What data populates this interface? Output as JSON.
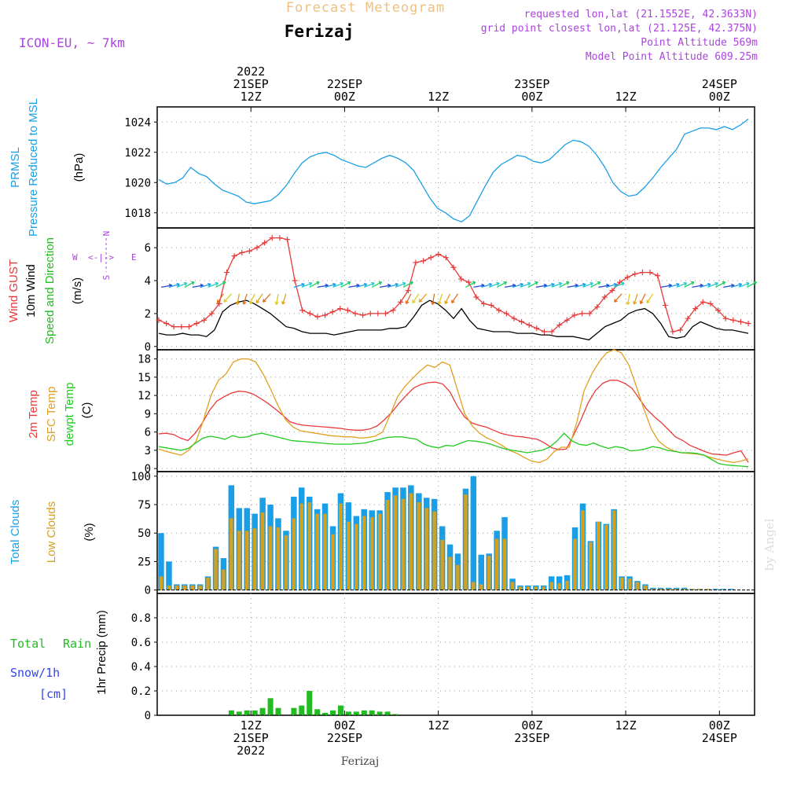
{
  "header": {
    "title_top": "Forecast Meteogram",
    "station": "Ferizaj",
    "model": "ICON-EU, ~ 7km",
    "info_1": "requested lon,lat (21.1552E, 42.3633N)",
    "info_2": "grid point closest lon,lat (21.125E, 42.375N)",
    "info_3": "Point Altitude 569m",
    "info_4": "Model Point Altitude 609.25m",
    "footer_station": "Ferizaj",
    "watermark": "by Angel"
  },
  "colors": {
    "pressure": "#1a9fe6",
    "gust": "#e83a3a",
    "wind": "#000000",
    "wind_dir_label": "#22bb22",
    "t2m": "#e83a3a",
    "sfc": "#e0a020",
    "dewpt": "#22cc22",
    "total_clouds": "#1a9fe6",
    "low_clouds": "#d4a020",
    "rain": "#22bb22",
    "snow": "#3344ee",
    "compass": "#aa44dd",
    "header_purple": "#aa44dd",
    "title_orange": "#f0c080"
  },
  "top_axis": {
    "labels": [
      {
        "hour": 12,
        "lines": [
          "2022",
          "21SEP",
          "12Z"
        ]
      },
      {
        "hour": 24,
        "lines": [
          "22SEP",
          "00Z"
        ]
      },
      {
        "hour": 36,
        "lines": [
          "12Z"
        ]
      },
      {
        "hour": 48,
        "lines": [
          "23SEP",
          "00Z"
        ]
      },
      {
        "hour": 60,
        "lines": [
          "12Z"
        ]
      },
      {
        "hour": 72,
        "lines": [
          "24SEP",
          "00Z"
        ]
      }
    ]
  },
  "bottom_axis": {
    "labels": [
      {
        "hour": 12,
        "lines": [
          "12Z",
          "21SEP",
          "2022"
        ]
      },
      {
        "hour": 24,
        "lines": [
          "00Z",
          "22SEP"
        ]
      },
      {
        "hour": 36,
        "lines": [
          "12Z"
        ]
      },
      {
        "hour": 48,
        "lines": [
          "00Z",
          "23SEP"
        ]
      },
      {
        "hour": 60,
        "lines": [
          "12Z"
        ]
      },
      {
        "hour": 72,
        "lines": [
          "00Z",
          "24SEP"
        ]
      }
    ]
  },
  "panels": {
    "pressure": {
      "label_1": "PRMSL",
      "label_2": "Pressure Reduced to MSL",
      "unit": "(hPa)"
    },
    "wind": {
      "label_gust": "Wind GUST",
      "label_wind": "10m Wind",
      "label_dir": "Speed and Direction",
      "unit": "(m/s)",
      "compass_n": "N",
      "compass_s": "S",
      "compass_w": "W",
      "compass_e": "E",
      "compass_arrows": "<-|->"
    },
    "temp": {
      "label_t2m": "2m Temp",
      "label_sfc": "SFC Temp",
      "label_dew": "dewpt Temp",
      "unit": "(C)"
    },
    "clouds": {
      "label_total": "Total Clouds",
      "label_low": "Low Clouds",
      "unit": "(%)"
    },
    "precip": {
      "label_rain_1": "Total",
      "label_rain_2": "Rain",
      "label_snow": "Snow/1h",
      "label_cm": "[cm]",
      "unit": "1hr Precip (mm)"
    }
  },
  "chart_data": [
    {
      "type": "line",
      "name": "pressure",
      "x_range_hours": [
        0,
        76.5
      ],
      "ylim": [
        1017,
        1025
      ],
      "yticks": [
        1018,
        1020,
        1022,
        1024
      ],
      "series": [
        {
          "name": "PRMSL",
          "values": [
            1020.2,
            1019.9,
            1020.0,
            1020.3,
            1021.0,
            1020.6,
            1020.4,
            1019.9,
            1019.5,
            1019.3,
            1019.1,
            1018.7,
            1018.6,
            1018.7,
            1018.8,
            1019.2,
            1019.8,
            1020.6,
            1021.3,
            1021.7,
            1021.9,
            1022.0,
            1021.8,
            1021.5,
            1021.3,
            1021.1,
            1021.0,
            1021.3,
            1021.6,
            1021.8,
            1021.6,
            1021.3,
            1020.8,
            1019.9,
            1019.0,
            1018.3,
            1018.0,
            1017.6,
            1017.4,
            1017.8,
            1018.8,
            1019.8,
            1020.7,
            1021.2,
            1021.5,
            1021.8,
            1021.7,
            1021.4,
            1021.3,
            1021.5,
            1022.0,
            1022.5,
            1022.8,
            1022.7,
            1022.4,
            1021.8,
            1021.0,
            1020.0,
            1019.4,
            1019.1,
            1019.2,
            1019.7,
            1020.3,
            1021.0,
            1021.6,
            1022.2,
            1023.2,
            1023.4,
            1023.6,
            1023.6,
            1023.5,
            1023.7,
            1023.5,
            1023.8,
            1024.2
          ]
        }
      ],
      "grid": true
    },
    {
      "type": "line",
      "name": "wind",
      "x_range_hours": [
        0,
        76.5
      ],
      "ylim": [
        -0.2,
        7.2
      ],
      "yticks": [
        0,
        2,
        4,
        6
      ],
      "series": [
        {
          "name": "Wind GUST",
          "values": [
            1.6,
            1.4,
            1.2,
            1.2,
            1.2,
            1.4,
            1.6,
            2.0,
            2.6,
            4.5,
            5.5,
            5.7,
            5.8,
            6.0,
            6.3,
            6.6,
            6.6,
            6.5,
            4.0,
            2.2,
            2.0,
            1.8,
            1.9,
            2.1,
            2.3,
            2.2,
            2.0,
            1.9,
            2.0,
            2.0,
            2.0,
            2.2,
            2.7,
            3.4,
            5.1,
            5.2,
            5.4,
            5.6,
            5.4,
            4.8,
            4.1,
            3.9,
            3.0,
            2.6,
            2.5,
            2.2,
            2.0,
            1.7,
            1.5,
            1.3,
            1.1,
            0.9,
            0.9,
            1.3,
            1.6,
            1.9,
            2.0,
            2.0,
            2.4,
            3.0,
            3.4,
            3.9,
            4.2,
            4.4,
            4.5,
            4.5,
            4.3,
            2.5,
            0.9,
            1.0,
            1.7,
            2.3,
            2.7,
            2.6,
            2.2,
            1.7,
            1.6,
            1.5,
            1.4
          ]
        },
        {
          "name": "10m Wind",
          "values": [
            0.8,
            0.7,
            0.7,
            0.8,
            0.7,
            0.7,
            0.6,
            1.0,
            2.1,
            2.5,
            2.7,
            2.8,
            2.6,
            2.3,
            2.0,
            1.6,
            1.2,
            1.1,
            0.9,
            0.8,
            0.8,
            0.8,
            0.7,
            0.8,
            0.9,
            1.0,
            1.0,
            1.0,
            1.0,
            1.1,
            1.1,
            1.2,
            1.8,
            2.5,
            2.8,
            2.6,
            2.2,
            1.7,
            2.3,
            1.6,
            1.1,
            1.0,
            0.9,
            0.9,
            0.9,
            0.8,
            0.8,
            0.8,
            0.7,
            0.7,
            0.6,
            0.6,
            0.6,
            0.5,
            0.4,
            0.8,
            1.2,
            1.4,
            1.6,
            2.0,
            2.2,
            2.3,
            2.0,
            1.4,
            0.6,
            0.5,
            0.6,
            1.2,
            1.5,
            1.3,
            1.1,
            1.0,
            1.0,
            0.9,
            0.8
          ]
        }
      ],
      "grid": true
    },
    {
      "type": "line",
      "name": "temperature",
      "x_range_hours": [
        0,
        76.5
      ],
      "ylim": [
        -0.5,
        19.5
      ],
      "yticks": [
        0,
        3,
        6,
        9,
        12,
        15,
        18
      ],
      "series": [
        {
          "name": "2m Temp",
          "values": [
            5.7,
            5.8,
            5.6,
            5.0,
            4.6,
            5.8,
            7.5,
            9.6,
            11.1,
            11.8,
            12.4,
            12.7,
            12.6,
            12.2,
            11.5,
            10.7,
            9.8,
            8.8,
            7.7,
            7.3,
            7.1,
            7.0,
            6.9,
            6.8,
            6.7,
            6.6,
            6.4,
            6.3,
            6.3,
            6.5,
            7.0,
            8.0,
            9.2,
            10.7,
            12.0,
            13.2,
            13.8,
            14.1,
            14.2,
            13.9,
            12.6,
            10.3,
            8.5,
            7.5,
            7.1,
            6.8,
            6.3,
            5.8,
            5.5,
            5.3,
            5.2,
            5.0,
            4.8,
            4.2,
            3.4,
            3.1,
            3.2,
            5.5,
            8.0,
            10.8,
            12.8,
            14.0,
            14.5,
            14.5,
            14.0,
            13.2,
            11.5,
            9.8,
            8.6,
            7.6,
            6.4,
            5.2,
            4.6,
            3.8,
            3.3,
            2.8,
            2.4,
            2.3,
            2.2,
            2.6,
            2.9,
            1.0
          ]
        },
        {
          "name": "SFC Temp",
          "values": [
            3.2,
            2.8,
            2.5,
            2.2,
            3.0,
            4.5,
            8.0,
            12.0,
            14.5,
            15.5,
            17.5,
            18.0,
            18.0,
            17.5,
            15.5,
            13.0,
            10.3,
            8.0,
            6.8,
            6.2,
            6.0,
            5.8,
            5.6,
            5.4,
            5.3,
            5.2,
            5.2,
            5.0,
            5.1,
            5.3,
            6.0,
            8.8,
            11.8,
            13.5,
            14.8,
            16.0,
            17.0,
            16.6,
            17.5,
            17.0,
            13.0,
            9.0,
            7.0,
            5.8,
            5.0,
            4.5,
            3.8,
            3.0,
            2.5,
            1.8,
            1.2,
            1.0,
            1.5,
            2.8,
            3.5,
            3.5,
            7.5,
            12.8,
            15.5,
            17.5,
            19.0,
            19.5,
            19.0,
            17.0,
            13.5,
            9.8,
            6.5,
            4.5,
            3.5,
            2.9,
            2.6,
            2.5,
            2.4,
            2.2,
            1.8,
            1.5,
            1.2,
            1.0,
            1.2,
            1.6
          ]
        },
        {
          "name": "dewpt Temp",
          "values": [
            3.6,
            3.4,
            3.2,
            3.0,
            3.3,
            4.2,
            5.0,
            5.3,
            5.1,
            4.8,
            5.4,
            5.1,
            5.2,
            5.6,
            5.8,
            5.5,
            5.2,
            4.9,
            4.6,
            4.5,
            4.4,
            4.3,
            4.2,
            4.1,
            4.0,
            4.0,
            4.0,
            4.1,
            4.2,
            4.5,
            4.8,
            5.1,
            5.2,
            5.2,
            5.0,
            4.8,
            4.0,
            3.6,
            3.4,
            3.8,
            3.7,
            4.2,
            4.6,
            4.5,
            4.3,
            4.0,
            3.6,
            3.2,
            3.0,
            2.8,
            2.6,
            2.8,
            3.0,
            3.5,
            4.5,
            5.8,
            4.6,
            4.0,
            3.8,
            4.2,
            3.7,
            3.3,
            3.6,
            3.4,
            2.9,
            3.0,
            3.2,
            3.6,
            3.4,
            3.0,
            2.8,
            2.6,
            2.6,
            2.5,
            2.2,
            1.5,
            0.8,
            0.6,
            0.5,
            0.4,
            0.3
          ]
        }
      ],
      "grid": true
    },
    {
      "type": "bar",
      "name": "clouds",
      "x_range_hours": [
        0,
        76.5
      ],
      "ylim": [
        -3,
        104
      ],
      "yticks": [
        0,
        25,
        50,
        75,
        100
      ],
      "series": [
        {
          "name": "Total Clouds",
          "values": [
            50,
            25,
            5,
            5,
            5,
            5,
            12,
            38,
            28,
            92,
            72,
            72,
            67,
            81,
            75,
            63,
            52,
            82,
            90,
            82,
            71,
            76,
            56,
            85,
            77,
            65,
            71,
            70,
            70,
            86,
            90,
            90,
            92,
            85,
            81,
            80,
            56,
            40,
            32,
            89,
            100,
            31,
            32,
            52,
            64,
            10,
            4,
            4,
            4,
            4,
            12,
            12,
            13,
            55,
            76,
            43,
            60,
            58,
            71,
            12,
            12,
            8,
            5,
            2,
            2,
            2,
            2,
            2,
            1,
            1,
            1,
            1,
            1,
            1,
            0,
            0,
            0,
            0
          ]
        },
        {
          "name": "Low Clouds",
          "values": [
            12,
            4,
            4,
            4,
            4,
            4,
            11,
            36,
            18,
            63,
            52,
            52,
            54,
            68,
            56,
            55,
            48,
            63,
            76,
            77,
            67,
            67,
            49,
            76,
            60,
            58,
            65,
            64,
            67,
            79,
            83,
            80,
            85,
            77,
            72,
            69,
            44,
            29,
            22,
            84,
            7,
            5,
            30,
            45,
            45,
            7,
            3,
            3,
            3,
            3,
            7,
            6,
            8,
            45,
            70,
            42,
            60,
            57,
            70,
            11,
            10,
            7,
            4,
            1,
            1,
            1,
            1,
            1,
            1,
            1,
            1,
            0,
            0,
            0,
            0,
            0,
            0,
            0
          ]
        }
      ],
      "grid": true
    },
    {
      "type": "bar",
      "name": "precipitation",
      "x_range_hours": [
        0,
        76.5
      ],
      "ylim": [
        0,
        1.0
      ],
      "yticks": [
        0,
        0.2,
        0.4,
        0.6,
        0.8
      ],
      "series": [
        {
          "name": "Rain",
          "values": [
            0,
            0,
            0,
            0,
            0,
            0,
            0,
            0,
            0,
            0.04,
            0.03,
            0.04,
            0.04,
            0.06,
            0.14,
            0.06,
            0,
            0.06,
            0.08,
            0.2,
            0.05,
            0.02,
            0.04,
            0.08,
            0.03,
            0.03,
            0.04,
            0.04,
            0.03,
            0.03,
            0.01,
            0,
            0,
            0,
            0,
            0,
            0,
            0,
            0,
            0,
            0,
            0,
            0,
            0,
            0,
            0,
            0,
            0,
            0,
            0,
            0,
            0,
            0,
            0,
            0,
            0,
            0,
            0,
            0,
            0,
            0,
            0,
            0,
            0,
            0,
            0,
            0,
            0,
            0,
            0,
            0,
            0,
            0,
            0,
            0,
            0,
            0
          ]
        }
      ],
      "grid": true
    }
  ]
}
